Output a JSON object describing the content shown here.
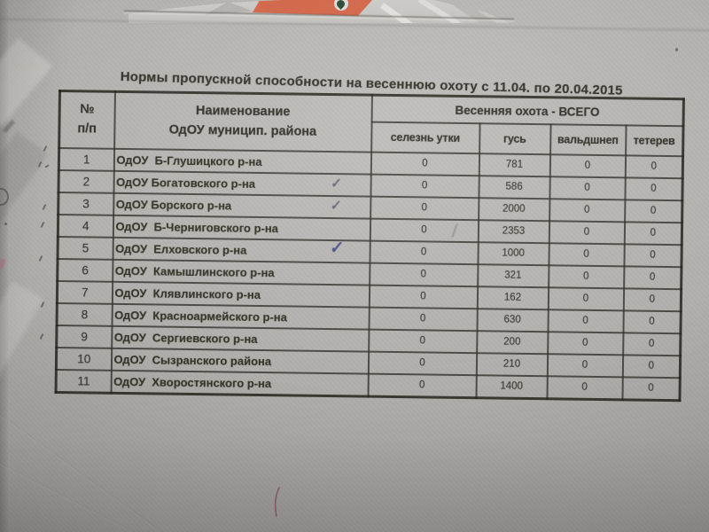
{
  "document": {
    "title": "Нормы пропускной способности на весеннюю охоту с 11.04. по 20.04.2015",
    "table": {
      "col_headers": {
        "num_line1": "№",
        "num_line2": "п/п",
        "name_line1": "Наименование",
        "name_line2": "ОдОУ муницип. района",
        "group": "Весенняя охота - ВСЕГО",
        "sub": [
          "селезнь утки",
          "гусь",
          "вальдшнеп",
          "тетерев"
        ]
      },
      "rows": [
        {
          "num": "1",
          "name": "ОдОУ  Б-Глушицкого р-на",
          "values": [
            "0",
            "781",
            "0",
            "0"
          ],
          "check": null
        },
        {
          "num": "2",
          "name": "ОдОУ Богатовского р-на",
          "values": [
            "0",
            "586",
            "0",
            "0"
          ],
          "check": "pencil"
        },
        {
          "num": "3",
          "name": "ОдОУ Борского р-на",
          "values": [
            "0",
            "2000",
            "0",
            "0"
          ],
          "check": "pencil"
        },
        {
          "num": "4",
          "name": "ОдОУ  Б-Черниговского р-на",
          "values": [
            "0",
            "2353",
            "0",
            "0"
          ],
          "check": null
        },
        {
          "num": "5",
          "name": "ОдОУ  Елховского р-на",
          "values": [
            "0",
            "1000",
            "0",
            "0"
          ],
          "check": "pen"
        },
        {
          "num": "6",
          "name": "ОдОУ  Камышлинского р-на",
          "values": [
            "0",
            "321",
            "0",
            "0"
          ],
          "check": null
        },
        {
          "num": "7",
          "name": "ОдОУ  Клявлинского р-на",
          "values": [
            "0",
            "162",
            "0",
            "0"
          ],
          "check": null
        },
        {
          "num": "8",
          "name": "ОдОУ  Красноармейского р-на",
          "values": [
            "0",
            "630",
            "0",
            "0"
          ],
          "check": null
        },
        {
          "num": "9",
          "name": "ОдОУ  Сергиевского р-на",
          "values": [
            "0",
            "200",
            "0",
            "0"
          ],
          "check": null
        },
        {
          "num": "10",
          "name": "ОдОУ  Сызранского района",
          "values": [
            "0",
            "210",
            "0",
            "0"
          ],
          "check": null
        },
        {
          "num": "11",
          "name": "ОдОУ  Хворостянского р-на",
          "values": [
            "0",
            "1400",
            "0",
            "0"
          ],
          "check": null
        }
      ]
    }
  },
  "annotations": {
    "check_glyph": "✓",
    "checked_row_numbers": [
      "2",
      "3",
      "5"
    ]
  },
  "colors": {
    "paper_gray": "#b1afac",
    "table_line": "#3a382f",
    "ink_text": "#37352e",
    "check_pencil": "#6c6878",
    "check_pen": "#4a5095",
    "map_orange": "#d2684c",
    "map_marker_green": "#2e4f36",
    "red_pen_mark": "#8a4a55",
    "pink_mark": "#b06a80"
  }
}
